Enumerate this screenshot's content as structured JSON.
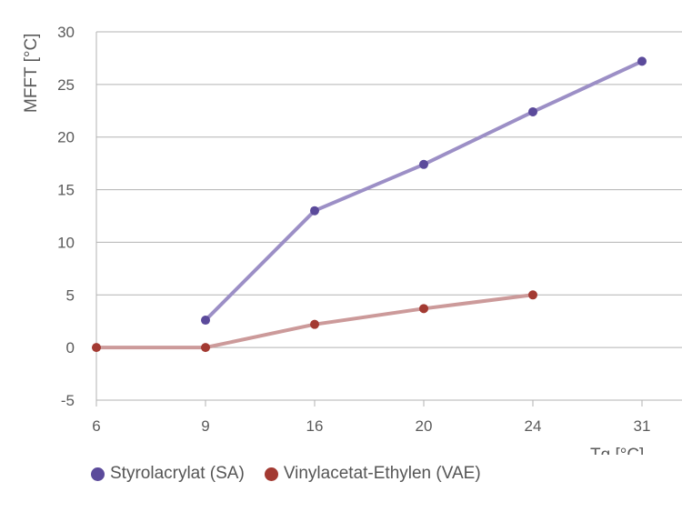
{
  "chart_data": {
    "type": "line",
    "title": "",
    "xlabel": "Tg [°C]",
    "ylabel": "MFFT [°C]",
    "categories": [
      "6",
      "9",
      "16",
      "20",
      "24",
      "31"
    ],
    "ylim": [
      -5,
      30
    ],
    "yticks": [
      -5,
      0,
      5,
      10,
      15,
      20,
      25,
      30
    ],
    "grid": true,
    "legend_position": "bottom-left",
    "series": [
      {
        "name": "Styrolacrylat (SA)",
        "line_color": "#9c8fc6",
        "marker_color": "#5b4a9b",
        "values": [
          null,
          2.6,
          13,
          17.4,
          22.4,
          27.2
        ]
      },
      {
        "name": "Vinylacetat-Ethylen (VAE)",
        "line_color": "#cc9a9a",
        "marker_color": "#a33a32",
        "values": [
          0,
          0,
          2.2,
          3.7,
          5,
          null
        ]
      }
    ]
  }
}
